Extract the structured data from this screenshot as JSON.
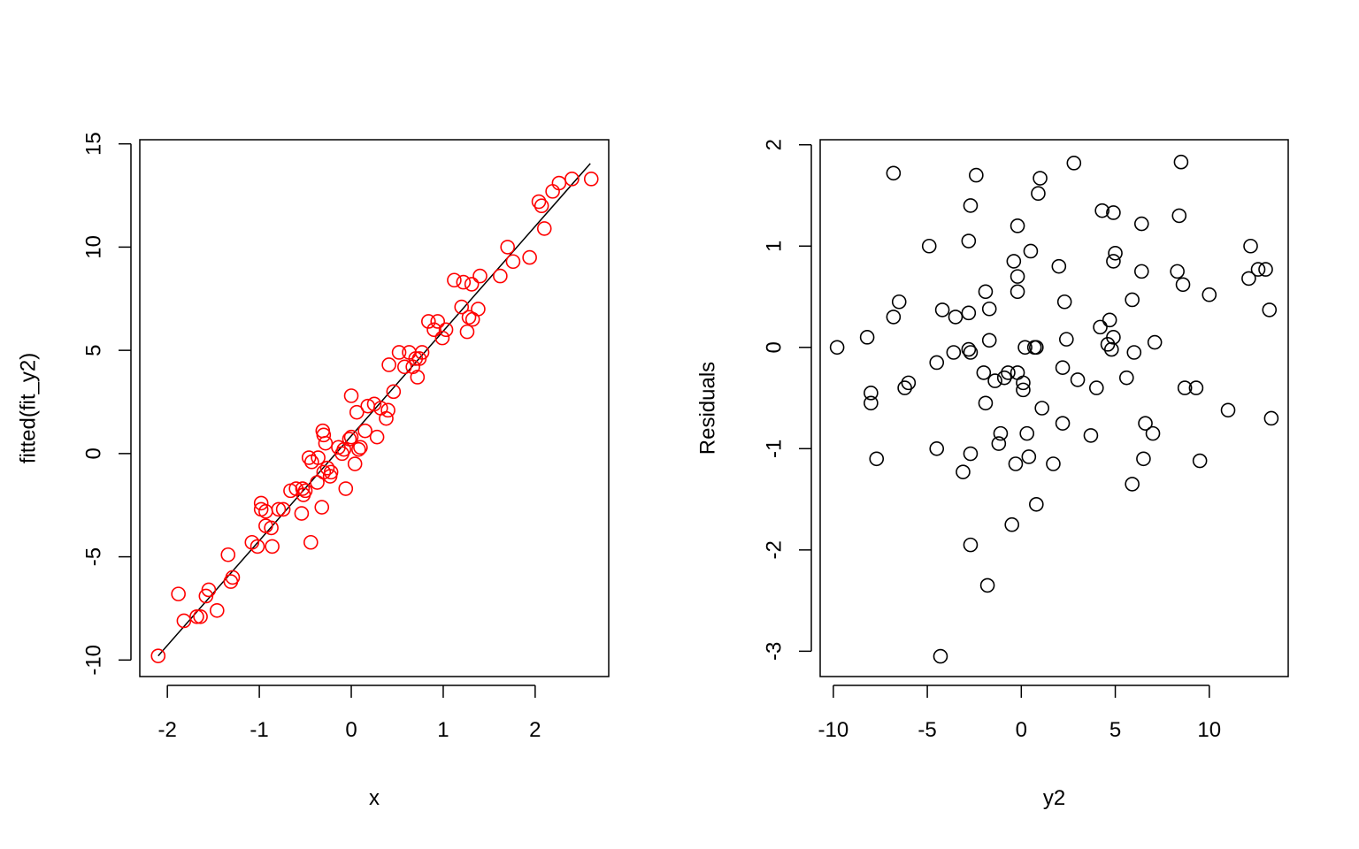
{
  "chart_data": [
    {
      "type": "scatter",
      "xlabel": "x",
      "ylabel": "fitted(fit_y2)",
      "xlim": [
        -2.3,
        2.8
      ],
      "ylim": [
        -10.8,
        15.2
      ],
      "xticks": [
        -2,
        -1,
        0,
        1,
        2
      ],
      "yticks": [
        -10,
        -5,
        0,
        5,
        10,
        15
      ],
      "grid": false,
      "point_color": "#ff0000",
      "line_color": "#000000",
      "fit_line": {
        "x": [
          -2.1,
          2.6
        ],
        "y": [
          -9.8,
          14.05
        ]
      },
      "points": [
        [
          -2.1,
          -9.8
        ],
        [
          -1.88,
          -6.8
        ],
        [
          -1.82,
          -8.1
        ],
        [
          -1.68,
          -7.9
        ],
        [
          -1.64,
          -7.9
        ],
        [
          -1.58,
          -6.9
        ],
        [
          -1.55,
          -6.6
        ],
        [
          -1.46,
          -7.6
        ],
        [
          -1.34,
          -4.9
        ],
        [
          -1.31,
          -6.2
        ],
        [
          -1.29,
          -6.0
        ],
        [
          -1.08,
          -4.3
        ],
        [
          -1.02,
          -4.5
        ],
        [
          -0.98,
          -2.4
        ],
        [
          -0.98,
          -2.7
        ],
        [
          -0.93,
          -3.5
        ],
        [
          -0.93,
          -2.8
        ],
        [
          -0.87,
          -3.6
        ],
        [
          -0.86,
          -4.5
        ],
        [
          -0.79,
          -2.7
        ],
        [
          -0.74,
          -2.7
        ],
        [
          -0.66,
          -1.8
        ],
        [
          -0.6,
          -1.7
        ],
        [
          -0.54,
          -2.9
        ],
        [
          -0.53,
          -1.7
        ],
        [
          -0.52,
          -2.0
        ],
        [
          -0.5,
          -1.8
        ],
        [
          -0.46,
          -0.2
        ],
        [
          -0.44,
          -4.3
        ],
        [
          -0.43,
          -0.4
        ],
        [
          -0.37,
          -1.4
        ],
        [
          -0.36,
          -0.2
        ],
        [
          -0.32,
          -2.6
        ],
        [
          -0.31,
          1.1
        ],
        [
          -0.3,
          0.9
        ],
        [
          -0.3,
          -0.9
        ],
        [
          -0.28,
          0.5
        ],
        [
          -0.26,
          -0.7
        ],
        [
          -0.23,
          -1.1
        ],
        [
          -0.22,
          -0.9
        ],
        [
          -0.14,
          0.3
        ],
        [
          -0.1,
          0.0
        ],
        [
          -0.08,
          0.2
        ],
        [
          -0.06,
          -1.7
        ],
        [
          -0.02,
          0.7
        ],
        [
          0.0,
          2.8
        ],
        [
          0.0,
          0.8
        ],
        [
          0.04,
          -0.5
        ],
        [
          0.06,
          2.0
        ],
        [
          0.08,
          0.2
        ],
        [
          0.1,
          0.3
        ],
        [
          0.15,
          1.1
        ],
        [
          0.18,
          2.3
        ],
        [
          0.25,
          2.4
        ],
        [
          0.28,
          0.8
        ],
        [
          0.32,
          2.2
        ],
        [
          0.38,
          1.7
        ],
        [
          0.4,
          2.1
        ],
        [
          0.41,
          4.3
        ],
        [
          0.46,
          3.0
        ],
        [
          0.52,
          4.9
        ],
        [
          0.58,
          4.2
        ],
        [
          0.63,
          4.9
        ],
        [
          0.67,
          4.2
        ],
        [
          0.7,
          4.6
        ],
        [
          0.72,
          3.7
        ],
        [
          0.74,
          4.6
        ],
        [
          0.77,
          4.9
        ],
        [
          0.84,
          6.4
        ],
        [
          0.9,
          6.0
        ],
        [
          0.94,
          6.4
        ],
        [
          0.99,
          5.6
        ],
        [
          1.03,
          6.0
        ],
        [
          1.12,
          8.4
        ],
        [
          1.2,
          7.1
        ],
        [
          1.22,
          8.3
        ],
        [
          1.26,
          5.9
        ],
        [
          1.28,
          6.6
        ],
        [
          1.31,
          8.2
        ],
        [
          1.32,
          6.5
        ],
        [
          1.38,
          7.0
        ],
        [
          1.4,
          8.6
        ],
        [
          1.62,
          8.6
        ],
        [
          1.7,
          10.0
        ],
        [
          1.76,
          9.3
        ],
        [
          1.94,
          9.5
        ],
        [
          2.04,
          12.2
        ],
        [
          2.07,
          12.0
        ],
        [
          2.1,
          10.9
        ],
        [
          2.19,
          12.7
        ],
        [
          2.26,
          13.1
        ],
        [
          2.4,
          13.3
        ],
        [
          2.61,
          13.3
        ]
      ]
    },
    {
      "type": "scatter",
      "xlabel": "y2",
      "ylabel": "Residuals",
      "xlim": [
        -10.7,
        14.2
      ],
      "ylim": [
        -3.25,
        2.05
      ],
      "xticks": [
        -10,
        -5,
        0,
        5,
        10
      ],
      "yticks": [
        -3,
        -2,
        -1,
        0,
        1,
        2
      ],
      "grid": false,
      "point_color": "#000000",
      "points": [
        [
          -9.8,
          0.0
        ],
        [
          -8.2,
          0.1
        ],
        [
          -8.0,
          -0.45
        ],
        [
          -8.0,
          -0.55
        ],
        [
          -7.7,
          -1.1
        ],
        [
          -6.8,
          1.72
        ],
        [
          -6.8,
          0.3
        ],
        [
          -6.5,
          0.45
        ],
        [
          -6.2,
          -0.4
        ],
        [
          -6.0,
          -0.35
        ],
        [
          -4.9,
          1.0
        ],
        [
          -4.5,
          -1.0
        ],
        [
          -4.5,
          -0.15
        ],
        [
          -4.3,
          -3.05
        ],
        [
          -4.2,
          0.37
        ],
        [
          -3.6,
          -0.05
        ],
        [
          -3.5,
          0.3
        ],
        [
          -3.1,
          -1.23
        ],
        [
          -2.8,
          1.05
        ],
        [
          -2.8,
          -0.02
        ],
        [
          -2.8,
          0.34
        ],
        [
          -2.7,
          1.4
        ],
        [
          -2.7,
          -1.05
        ],
        [
          -2.7,
          -1.95
        ],
        [
          -2.7,
          -0.05
        ],
        [
          -2.4,
          1.7
        ],
        [
          -2.0,
          -0.25
        ],
        [
          -1.9,
          0.55
        ],
        [
          -1.9,
          -0.55
        ],
        [
          -1.8,
          -2.35
        ],
        [
          -1.7,
          0.38
        ],
        [
          -1.7,
          0.07
        ],
        [
          -1.4,
          -0.33
        ],
        [
          -1.2,
          -0.95
        ],
        [
          -1.1,
          -0.85
        ],
        [
          -0.9,
          -0.3
        ],
        [
          -0.7,
          -0.25
        ],
        [
          -0.5,
          -1.75
        ],
        [
          -0.4,
          0.85
        ],
        [
          -0.3,
          -1.15
        ],
        [
          -0.2,
          1.2
        ],
        [
          -0.2,
          0.7
        ],
        [
          -0.2,
          0.55
        ],
        [
          -0.2,
          -0.25
        ],
        [
          0.1,
          -0.35
        ],
        [
          0.1,
          -0.42
        ],
        [
          0.2,
          0.0
        ],
        [
          0.3,
          -0.85
        ],
        [
          0.4,
          -1.08
        ],
        [
          0.5,
          0.95
        ],
        [
          0.7,
          0.0
        ],
        [
          0.8,
          0.0
        ],
        [
          0.8,
          -1.55
        ],
        [
          0.9,
          1.52
        ],
        [
          1.0,
          1.67
        ],
        [
          1.1,
          -0.6
        ],
        [
          1.7,
          -1.15
        ],
        [
          2.0,
          0.8
        ],
        [
          2.2,
          -0.75
        ],
        [
          2.2,
          -0.2
        ],
        [
          2.3,
          0.45
        ],
        [
          2.4,
          0.08
        ],
        [
          2.8,
          1.82
        ],
        [
          3.0,
          -0.32
        ],
        [
          3.7,
          -0.87
        ],
        [
          4.0,
          -0.4
        ],
        [
          4.2,
          0.2
        ],
        [
          4.3,
          1.35
        ],
        [
          4.6,
          0.03
        ],
        [
          4.7,
          0.27
        ],
        [
          4.8,
          -0.02
        ],
        [
          4.9,
          1.33
        ],
        [
          4.9,
          0.85
        ],
        [
          4.9,
          0.1
        ],
        [
          5.0,
          0.93
        ],
        [
          5.6,
          -0.3
        ],
        [
          5.9,
          -1.35
        ],
        [
          5.9,
          0.47
        ],
        [
          6.0,
          -0.05
        ],
        [
          6.4,
          1.22
        ],
        [
          6.4,
          0.75
        ],
        [
          6.5,
          -1.1
        ],
        [
          6.6,
          -0.75
        ],
        [
          7.0,
          -0.85
        ],
        [
          7.1,
          0.05
        ],
        [
          8.3,
          0.75
        ],
        [
          8.4,
          1.3
        ],
        [
          8.5,
          1.83
        ],
        [
          8.6,
          0.62
        ],
        [
          8.7,
          -0.4
        ],
        [
          9.3,
          -0.4
        ],
        [
          9.5,
          -1.12
        ],
        [
          10.0,
          0.52
        ],
        [
          11.0,
          -0.62
        ],
        [
          12.1,
          0.68
        ],
        [
          12.2,
          1.0
        ],
        [
          12.6,
          0.77
        ],
        [
          13.0,
          0.77
        ],
        [
          13.2,
          0.37
        ],
        [
          13.3,
          -0.7
        ]
      ]
    }
  ]
}
